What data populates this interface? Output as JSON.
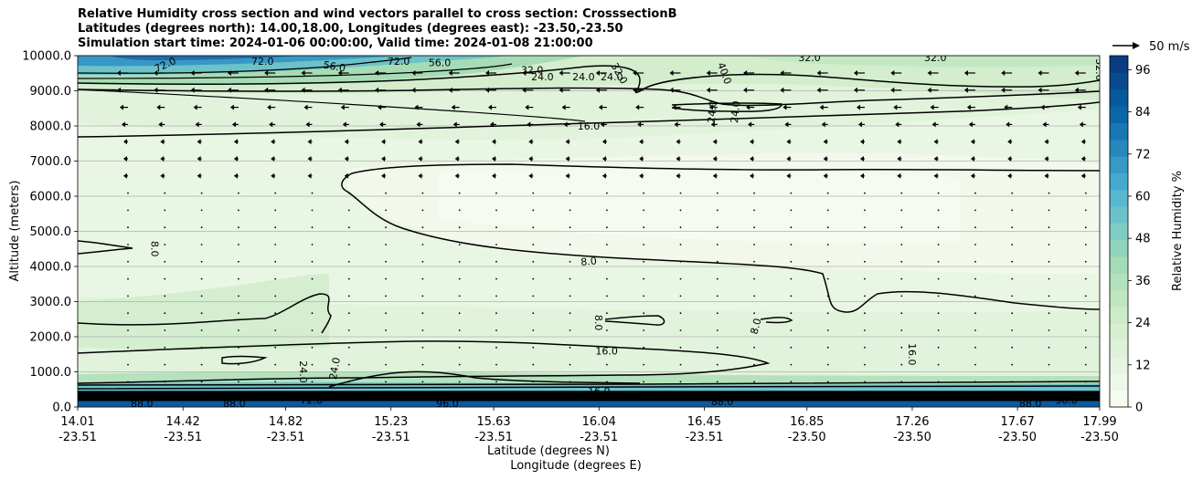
{
  "chart_data": {
    "type": "contour",
    "title_lines": [
      "Relative Humidity cross section and wind vectors parallel to cross section: CrosssectionB",
      "Latitudes (degrees north): 14.00,18.00, Longitudes (degrees east): -23.50,-23.50",
      "Simulation start time: 2024-01-06 00:00:00, Valid time: 2024-01-08 21:00:00"
    ],
    "ylabel": "Altitude (meters)",
    "xlabel_lat": "Latitude (degrees N)",
    "xlabel_lon": "Longitude (degrees E)",
    "ylim": [
      0,
      10000
    ],
    "xlim": [
      14.01,
      17.99
    ],
    "y_ticks": [
      "0.0",
      "1000.0",
      "2000.0",
      "3000.0",
      "4000.0",
      "5000.0",
      "6000.0",
      "7000.0",
      "8000.0",
      "9000.0",
      "10000.0"
    ],
    "x_ticks": [
      {
        "value": 14.01,
        "lat": "14.01",
        "lon": "-23.51"
      },
      {
        "value": 14.42,
        "lat": "14.42",
        "lon": "-23.51"
      },
      {
        "value": 14.82,
        "lat": "14.82",
        "lon": "-23.51"
      },
      {
        "value": 15.23,
        "lat": "15.23",
        "lon": "-23.51"
      },
      {
        "value": 15.63,
        "lat": "15.63",
        "lon": "-23.51"
      },
      {
        "value": 16.04,
        "lat": "16.04",
        "lon": "-23.51"
      },
      {
        "value": 16.45,
        "lat": "16.45",
        "lon": "-23.51"
      },
      {
        "value": 16.85,
        "lat": "16.85",
        "lon": "-23.50"
      },
      {
        "value": 17.26,
        "lat": "17.26",
        "lon": "-23.50"
      },
      {
        "value": 17.67,
        "lat": "17.67",
        "lon": "-23.50"
      },
      {
        "value": 17.99,
        "lat": "17.99",
        "lon": "-23.50"
      }
    ],
    "colorbar": {
      "label": "Relative Humidity %",
      "range": [
        0,
        100
      ],
      "ticks": [
        "0",
        "12",
        "24",
        "36",
        "48",
        "60",
        "72",
        "84",
        "96"
      ],
      "colors": [
        "#f7fcf0",
        "#eef8e9",
        "#e6f5e1",
        "#dff2d9",
        "#d7efd1",
        "#ccebc7",
        "#bfe6c1",
        "#b2e1bb",
        "#a3dcb6",
        "#90d5bc",
        "#7ecdc3",
        "#6bc3c9",
        "#57b8d0",
        "#45a9cf",
        "#3699c6",
        "#2788bd",
        "#1877b4",
        "#0b66a8",
        "#08589d",
        "#084a8e",
        "#083d80"
      ]
    },
    "quiver_key": "50 m/s",
    "contour_labels": [
      {
        "text": "72.0",
        "x": 14.35,
        "y": 9750,
        "rot": -25
      },
      {
        "text": "72.0",
        "x": 14.73,
        "y": 9850,
        "rot": 0
      },
      {
        "text": "56.0",
        "x": 15.01,
        "y": 9700,
        "rot": 10
      },
      {
        "text": "72.0",
        "x": 15.26,
        "y": 9850,
        "rot": 0
      },
      {
        "text": "56.0",
        "x": 15.42,
        "y": 9800,
        "rot": 0
      },
      {
        "text": "32.0",
        "x": 15.78,
        "y": 9600,
        "rot": 0
      },
      {
        "text": "24.0",
        "x": 15.82,
        "y": 9400,
        "rot": 0
      },
      {
        "text": "24.0",
        "x": 15.98,
        "y": 9400,
        "rot": 0
      },
      {
        "text": "24.0",
        "x": 16.09,
        "y": 9400,
        "rot": 0
      },
      {
        "text": "32.0",
        "x": 16.12,
        "y": 9500,
        "rot": 60
      },
      {
        "text": "40.0",
        "x": 16.53,
        "y": 9500,
        "rot": 70
      },
      {
        "text": "24.0",
        "x": 16.48,
        "y": 8400,
        "rot": -85
      },
      {
        "text": "24.0",
        "x": 16.57,
        "y": 8400,
        "rot": -85
      },
      {
        "text": "32.0",
        "x": 16.86,
        "y": 9950,
        "rot": 0
      },
      {
        "text": "32.0",
        "x": 17.35,
        "y": 9950,
        "rot": 0
      },
      {
        "text": "32.0",
        "x": 17.99,
        "y": 9600,
        "rot": 90
      },
      {
        "text": "16.0",
        "x": 16.0,
        "y": 8000,
        "rot": 0
      },
      {
        "text": "8.0",
        "x": 16.0,
        "y": 4150,
        "rot": -5
      },
      {
        "text": "8.0",
        "x": 14.31,
        "y": 4500,
        "rot": 90
      },
      {
        "text": "8.0",
        "x": 16.04,
        "y": 2400,
        "rot": 90
      },
      {
        "text": "8.0",
        "x": 16.65,
        "y": 2300,
        "rot": -75
      },
      {
        "text": "16.0",
        "x": 16.07,
        "y": 1600,
        "rot": 0
      },
      {
        "text": "16.0",
        "x": 17.26,
        "y": 1500,
        "rot": 90
      },
      {
        "text": "24.0",
        "x": 14.89,
        "y": 1000,
        "rot": 90
      },
      {
        "text": "24.0",
        "x": 15.01,
        "y": 1100,
        "rot": -80
      },
      {
        "text": "16.0",
        "x": 16.04,
        "y": 450,
        "rot": 0
      },
      {
        "text": "88.0",
        "x": 14.26,
        "y": 100,
        "rot": 0
      },
      {
        "text": "88.0",
        "x": 14.62,
        "y": 100,
        "rot": 0
      },
      {
        "text": "72.0",
        "x": 14.92,
        "y": 200,
        "rot": 0
      },
      {
        "text": "96.0",
        "x": 15.45,
        "y": 100,
        "rot": 0
      },
      {
        "text": "88.0",
        "x": 16.52,
        "y": 150,
        "rot": 0
      },
      {
        "text": "88.0",
        "x": 17.72,
        "y": 100,
        "rot": 0
      },
      {
        "text": "96.0",
        "x": 17.86,
        "y": 200,
        "rot": 0
      }
    ]
  }
}
